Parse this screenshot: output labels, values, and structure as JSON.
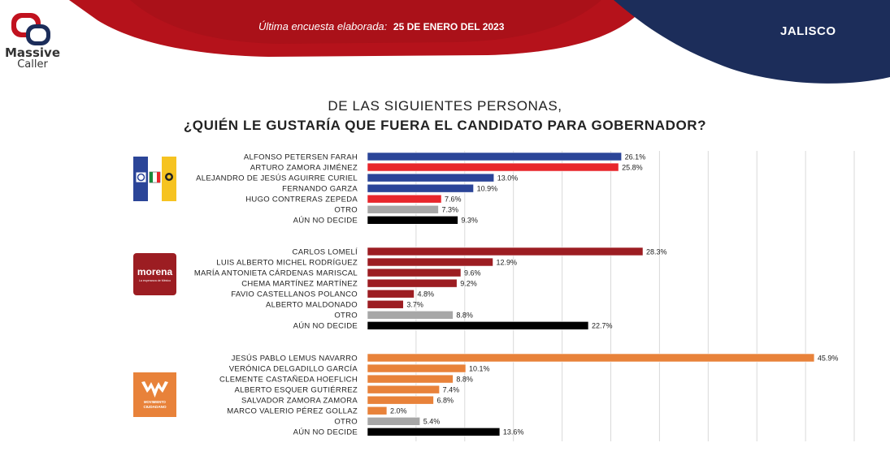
{
  "header": {
    "brand_line1": "Massive",
    "brand_line2": "Caller",
    "survey_prefix": "Última encuesta elaborada:",
    "survey_date": "25 DE ENERO DEL 2023",
    "state": "JALISCO"
  },
  "question": {
    "line1": "DE LAS SIGUIENTES PERSONAS,",
    "line2": "¿QUIÉN LE GUSTARÍA QUE FUERA EL CANDIDATO PARA GOBERNADOR?"
  },
  "colors": {
    "banner_red": "#b5121b",
    "banner_blue": "#1c2d5a",
    "pan_blue": "#2b4598",
    "pri_red": "#e8262c",
    "other_gray": "#a7a7a7",
    "undecided_black": "#000000",
    "morena": "#9c1d22",
    "mc_orange": "#e8823a"
  },
  "logos": {
    "group1": "pan-pri-prd-coalition-logo",
    "group2": {
      "name": "morena",
      "tagline": "La esperanza de México"
    },
    "group3": {
      "name": "MOVIMIENTO",
      "name2": "CIUDADANO"
    }
  },
  "chart_data": {
    "type": "bar",
    "orientation": "horizontal",
    "value_format": "percent",
    "xlim": [
      0,
      50
    ],
    "grid": true,
    "groups": [
      {
        "party": "PAN-PRI-PRD",
        "items": [
          {
            "name": "ALFONSO PETERSEN FARAH",
            "value": 26.1,
            "label": "26.1%",
            "color": "#2b4598"
          },
          {
            "name": "ARTURO ZAMORA JIMÉNEZ",
            "value": 25.8,
            "label": "25.8%",
            "color": "#e8262c"
          },
          {
            "name": "ALEJANDRO DE JESÚS AGUIRRE CURIEL",
            "value": 13.0,
            "label": "13.0%",
            "color": "#2b4598"
          },
          {
            "name": "FERNANDO GARZA",
            "value": 10.9,
            "label": "10.9%",
            "color": "#2b4598"
          },
          {
            "name": "HUGO CONTRERAS ZEPEDA",
            "value": 7.6,
            "label": "7.6%",
            "color": "#e8262c"
          },
          {
            "name": "OTRO",
            "value": 7.3,
            "label": "7.3%",
            "color": "#a7a7a7"
          },
          {
            "name": "AÚN NO DECIDE",
            "value": 9.3,
            "label": "9.3%",
            "color": "#000000"
          }
        ]
      },
      {
        "party": "MORENA",
        "items": [
          {
            "name": "CARLOS LOMELÍ",
            "value": 28.3,
            "label": "28.3%",
            "color": "#9c1d22"
          },
          {
            "name": "LUIS ALBERTO MICHEL RODRÍGUEZ",
            "value": 12.9,
            "label": "12.9%",
            "color": "#9c1d22"
          },
          {
            "name": "MARÍA ANTONIETA CÁRDENAS MARISCAL",
            "value": 9.6,
            "label": "9.6%",
            "color": "#9c1d22"
          },
          {
            "name": "CHEMA MARTÍNEZ MARTÍNEZ",
            "value": 9.2,
            "label": "9.2%",
            "color": "#9c1d22"
          },
          {
            "name": "FAVIO CASTELLANOS POLANCO",
            "value": 4.8,
            "label": "4.8%",
            "color": "#9c1d22"
          },
          {
            "name": "ALBERTO MALDONADO",
            "value": 3.7,
            "label": "3.7%",
            "color": "#9c1d22"
          },
          {
            "name": "OTRO",
            "value": 8.8,
            "label": "8.8%",
            "color": "#a7a7a7"
          },
          {
            "name": "AÚN NO DECIDE",
            "value": 22.7,
            "label": "22.7%",
            "color": "#000000"
          }
        ]
      },
      {
        "party": "MOVIMIENTO CIUDADANO",
        "items": [
          {
            "name": "JESÚS PABLO LEMUS NAVARRO",
            "value": 45.9,
            "label": "45.9%",
            "color": "#e8823a"
          },
          {
            "name": "VERÓNICA DELGADILLO GARCÍA",
            "value": 10.1,
            "label": "10.1%",
            "color": "#e8823a"
          },
          {
            "name": "CLEMENTE CASTAÑEDA HOEFLICH",
            "value": 8.8,
            "label": "8.8%",
            "color": "#e8823a"
          },
          {
            "name": "ALBERTO ESQUER GUTIÉRREZ",
            "value": 7.4,
            "label": "7.4%",
            "color": "#e8823a"
          },
          {
            "name": "SALVADOR ZAMORA ZAMORA",
            "value": 6.8,
            "label": "6.8%",
            "color": "#e8823a"
          },
          {
            "name": "MARCO VALERIO PÉREZ GOLLAZ",
            "value": 2.0,
            "label": "2.0%",
            "color": "#e8823a"
          },
          {
            "name": "OTRO",
            "value": 5.4,
            "label": "5.4%",
            "color": "#a7a7a7"
          },
          {
            "name": "AÚN NO DECIDE",
            "value": 13.6,
            "label": "13.6%",
            "color": "#000000"
          }
        ]
      }
    ]
  }
}
